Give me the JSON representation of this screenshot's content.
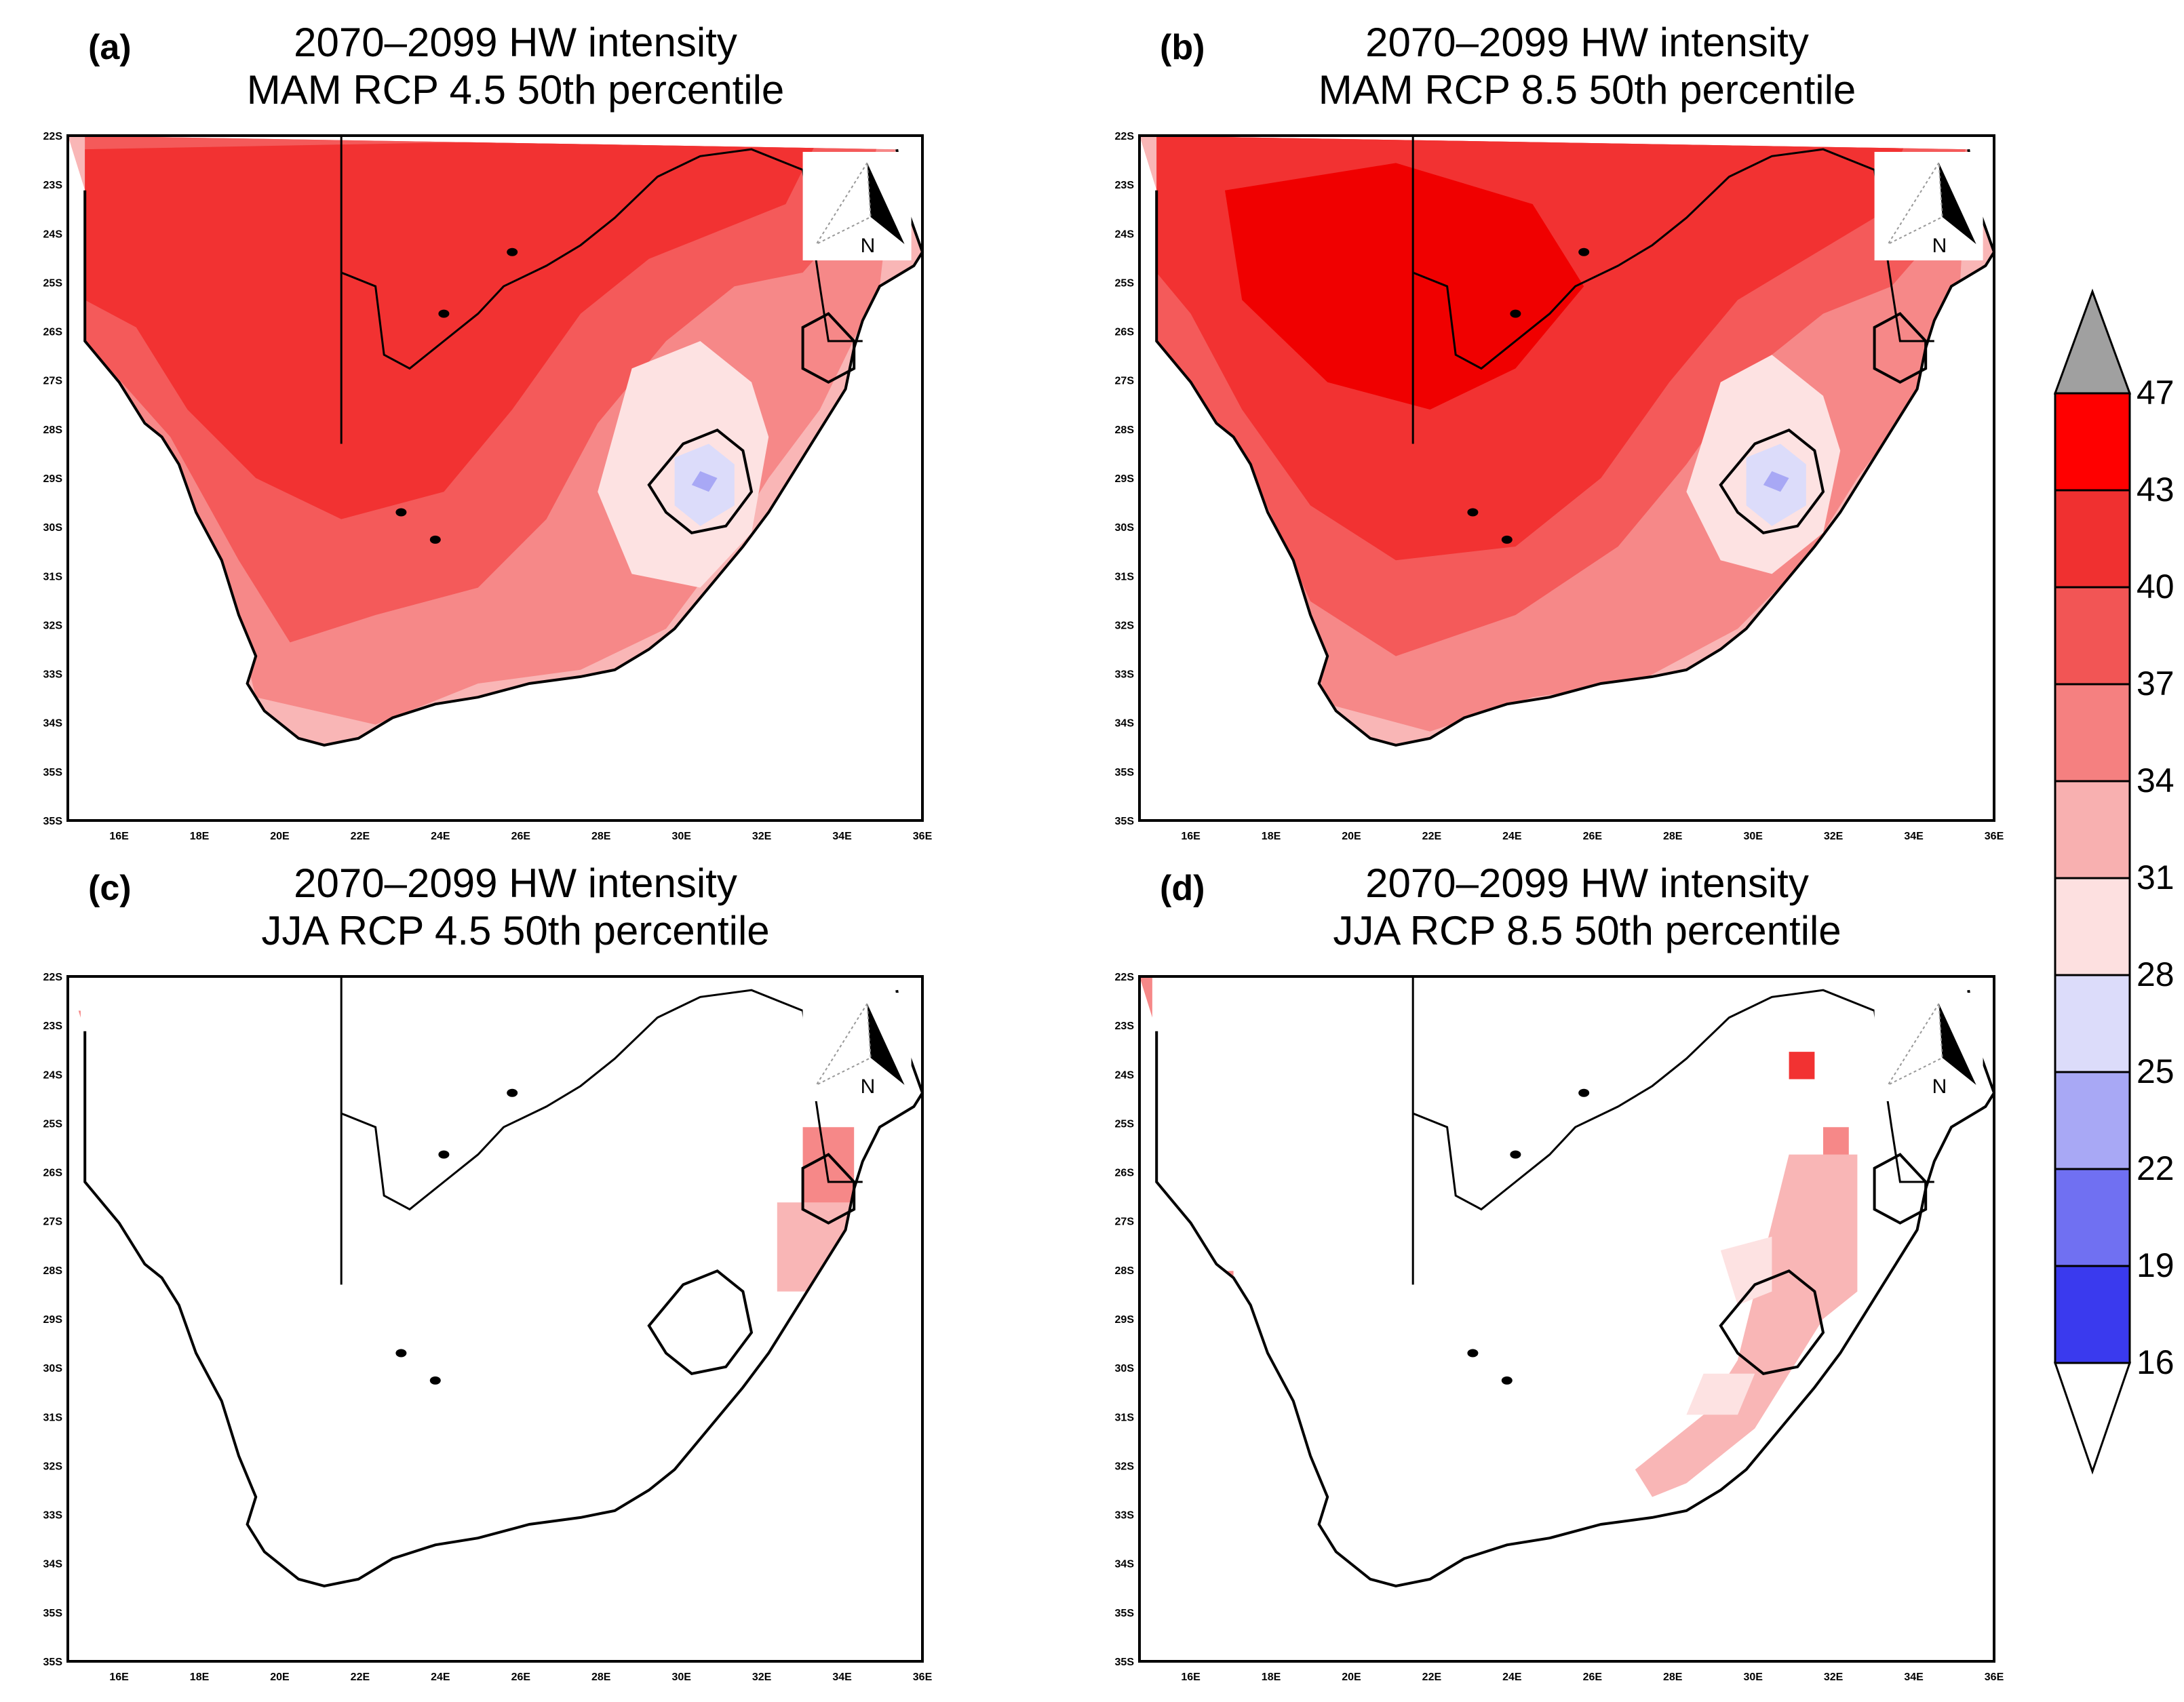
{
  "panels": [
    {
      "letter": "(a)",
      "title1": "2070–2099 HW intensity",
      "title2": "MAM RCP 4.5 50th percentile",
      "season": "MAM",
      "scenario": "RCP 4.5"
    },
    {
      "letter": "(b)",
      "title1": "2070–2099 HW intensity",
      "title2": "MAM RCP 8.5 50th percentile",
      "season": "MAM",
      "scenario": "RCP 8.5"
    },
    {
      "letter": "(c)",
      "title1": "2070–2099 HW intensity",
      "title2": "JJA RCP 4.5 50th percentile",
      "season": "JJA",
      "scenario": "RCP 4.5"
    },
    {
      "letter": "(d)",
      "title1": "2070–2099  HW intensity",
      "title2": "JJA RCP 8.5 50th percentile",
      "season": "JJA",
      "scenario": "RCP 8.5"
    }
  ],
  "lat_ticks": [
    "22S",
    "23S",
    "24S",
    "25S",
    "26S",
    "27S",
    "28S",
    "29S",
    "30S",
    "31S",
    "32S",
    "33S",
    "34S",
    "35S",
    "35S"
  ],
  "lon_ticks": [
    "16E",
    "18E",
    "20E",
    "22E",
    "24E",
    "26E",
    "28E",
    "30E",
    "32E",
    "34E",
    "36E"
  ],
  "north_arrow_label": "N",
  "colorbar": {
    "levels": [
      "47",
      "43",
      "40",
      "37",
      "34",
      "31",
      "28",
      "25",
      "22",
      "19",
      "16"
    ],
    "colors": [
      "#ff0000",
      "#f03030",
      "#f25555",
      "#f58080",
      "#f8b0b0",
      "#fde0e0",
      "#dcdcfa",
      "#a8a8f5",
      "#7070f2",
      "#3a3aee",
      "#1010ee",
      "#0000f5"
    ],
    "over_color": "#a0a0a0",
    "under_color": "#ffffff"
  },
  "fill_colors": {
    "c47": "#f00000",
    "c43": "#f23232",
    "c40": "#f45a5a",
    "c37": "#f68888",
    "c34": "#f9b6b6",
    "c31": "#fde2e2",
    "c28": "#dcdcfa",
    "c25": "#a8a8f5"
  }
}
